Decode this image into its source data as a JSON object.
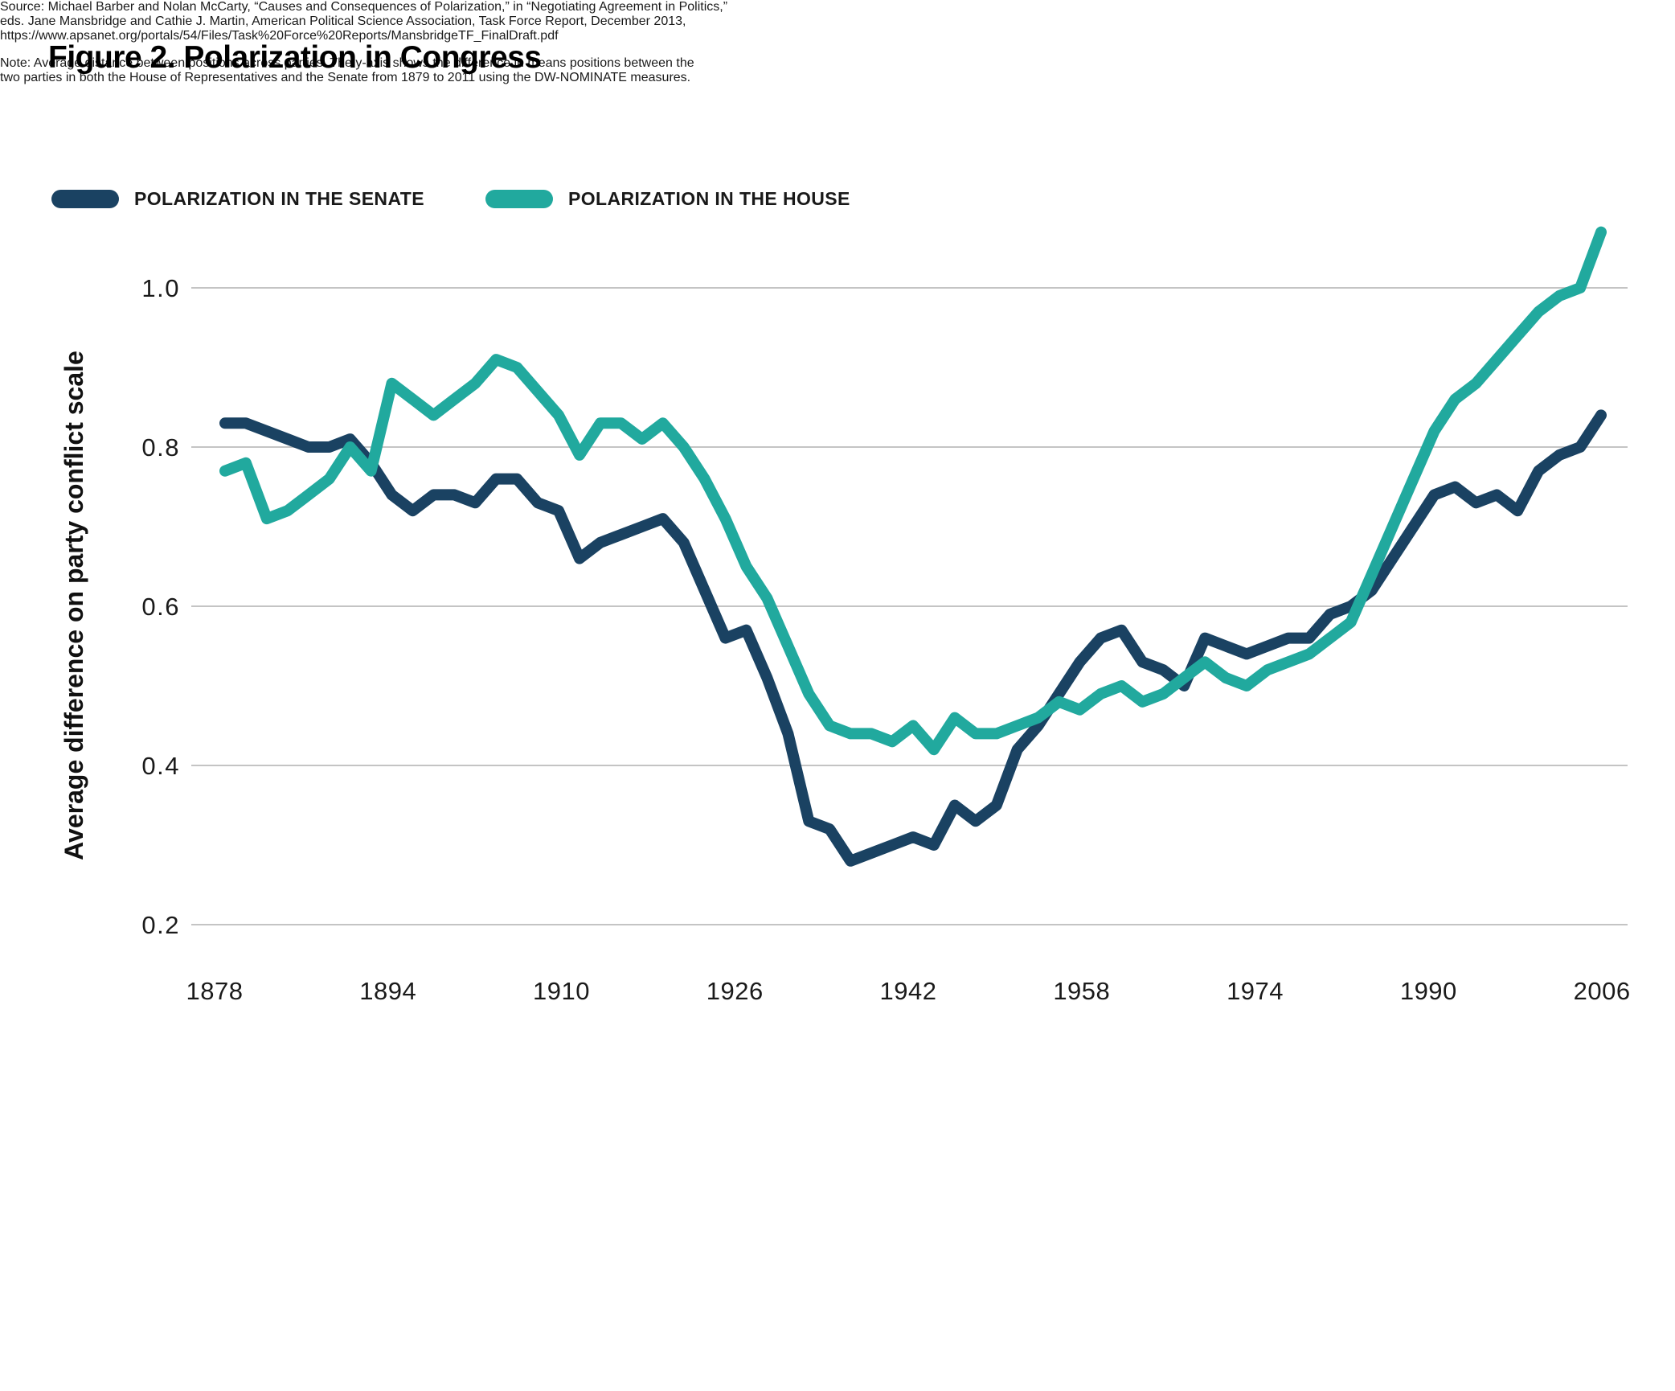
{
  "title": "Figure 2. Polarization in Congress",
  "legend": {
    "senate": {
      "label": "POLARIZATION IN THE SENATE",
      "color": "#1a4262"
    },
    "house": {
      "label": "POLARIZATION IN THE HOUSE",
      "color": "#21a99e"
    }
  },
  "source": {
    "lines": [
      "Source: Michael Barber and Nolan McCarty, “Causes and Consequences of Polarization,” in “Negotiating Agreement in Politics,”",
      "eds. Jane Mansbridge and Cathie J. Martin, American Political Science Association, Task Force Report, December 2013,",
      "https://www.apsanet.org/portals/54/Files/Task%20Force%20Reports/MansbridgeTF_FinalDraft.pdf"
    ]
  },
  "note": {
    "lines": [
      "Note: Average distance between positions across parties. The y-axis shows the difference in means positions between the",
      "two parties in both the House of Representatives and the Senate from 1879 to 2011 using the DW-NOMINATE measures."
    ]
  },
  "colors": {
    "senate_line": "#1a4262",
    "house_line": "#21a99e",
    "gridline": "#c4c4c4",
    "tick_text": "#1a1a1a",
    "background": "#ffffff"
  },
  "chart_data": {
    "type": "line",
    "title": "Figure 2. Polarization in Congress",
    "xlabel": "",
    "ylabel": "Average difference on party conflict scale",
    "grid": "horizontal",
    "legend_position": "top-left",
    "x_ticks": [
      1878,
      1894,
      1910,
      1926,
      1942,
      1958,
      1974,
      1990,
      2006
    ],
    "y_ticks": [
      1.0,
      0.8,
      0.6,
      0.4,
      0.2
    ],
    "ylim": [
      0.15,
      1.1
    ],
    "xlim": [
      1877,
      2012
    ],
    "x": [
      1879,
      1881,
      1883,
      1885,
      1887,
      1889,
      1891,
      1893,
      1895,
      1897,
      1899,
      1901,
      1903,
      1905,
      1907,
      1909,
      1911,
      1913,
      1915,
      1917,
      1919,
      1921,
      1923,
      1925,
      1927,
      1929,
      1931,
      1933,
      1935,
      1937,
      1939,
      1941,
      1943,
      1945,
      1947,
      1949,
      1951,
      1953,
      1955,
      1957,
      1959,
      1961,
      1963,
      1965,
      1967,
      1969,
      1971,
      1973,
      1975,
      1977,
      1979,
      1981,
      1983,
      1985,
      1987,
      1989,
      1991,
      1993,
      1995,
      1997,
      1999,
      2001,
      2003,
      2005,
      2007,
      2009,
      2011
    ],
    "series": [
      {
        "name": "Polarization in the Senate",
        "color": "#1a4262",
        "values": [
          0.83,
          0.83,
          0.82,
          0.81,
          0.8,
          0.8,
          0.81,
          0.78,
          0.74,
          0.72,
          0.74,
          0.74,
          0.73,
          0.76,
          0.76,
          0.73,
          0.72,
          0.66,
          0.68,
          0.69,
          0.7,
          0.71,
          0.68,
          0.62,
          0.56,
          0.57,
          0.51,
          0.44,
          0.33,
          0.32,
          0.28,
          0.29,
          0.3,
          0.31,
          0.3,
          0.35,
          0.33,
          0.35,
          0.42,
          0.45,
          0.49,
          0.53,
          0.56,
          0.57,
          0.53,
          0.52,
          0.5,
          0.56,
          0.55,
          0.54,
          0.55,
          0.56,
          0.56,
          0.59,
          0.6,
          0.62,
          0.66,
          0.7,
          0.74,
          0.75,
          0.73,
          0.74,
          0.72,
          0.77,
          0.79,
          0.8,
          0.84
        ]
      },
      {
        "name": "Polarization in the House",
        "color": "#21a99e",
        "values": [
          0.77,
          0.78,
          0.71,
          0.72,
          0.74,
          0.76,
          0.8,
          0.77,
          0.88,
          0.86,
          0.84,
          0.86,
          0.88,
          0.91,
          0.9,
          0.87,
          0.84,
          0.79,
          0.83,
          0.83,
          0.81,
          0.83,
          0.8,
          0.76,
          0.71,
          0.65,
          0.61,
          0.55,
          0.49,
          0.45,
          0.44,
          0.44,
          0.43,
          0.45,
          0.42,
          0.46,
          0.44,
          0.44,
          0.45,
          0.46,
          0.48,
          0.47,
          0.49,
          0.5,
          0.48,
          0.49,
          0.51,
          0.53,
          0.51,
          0.5,
          0.52,
          0.53,
          0.54,
          0.56,
          0.58,
          0.64,
          0.7,
          0.76,
          0.82,
          0.86,
          0.88,
          0.91,
          0.94,
          0.97,
          0.99,
          1.0,
          1.07
        ]
      }
    ]
  }
}
